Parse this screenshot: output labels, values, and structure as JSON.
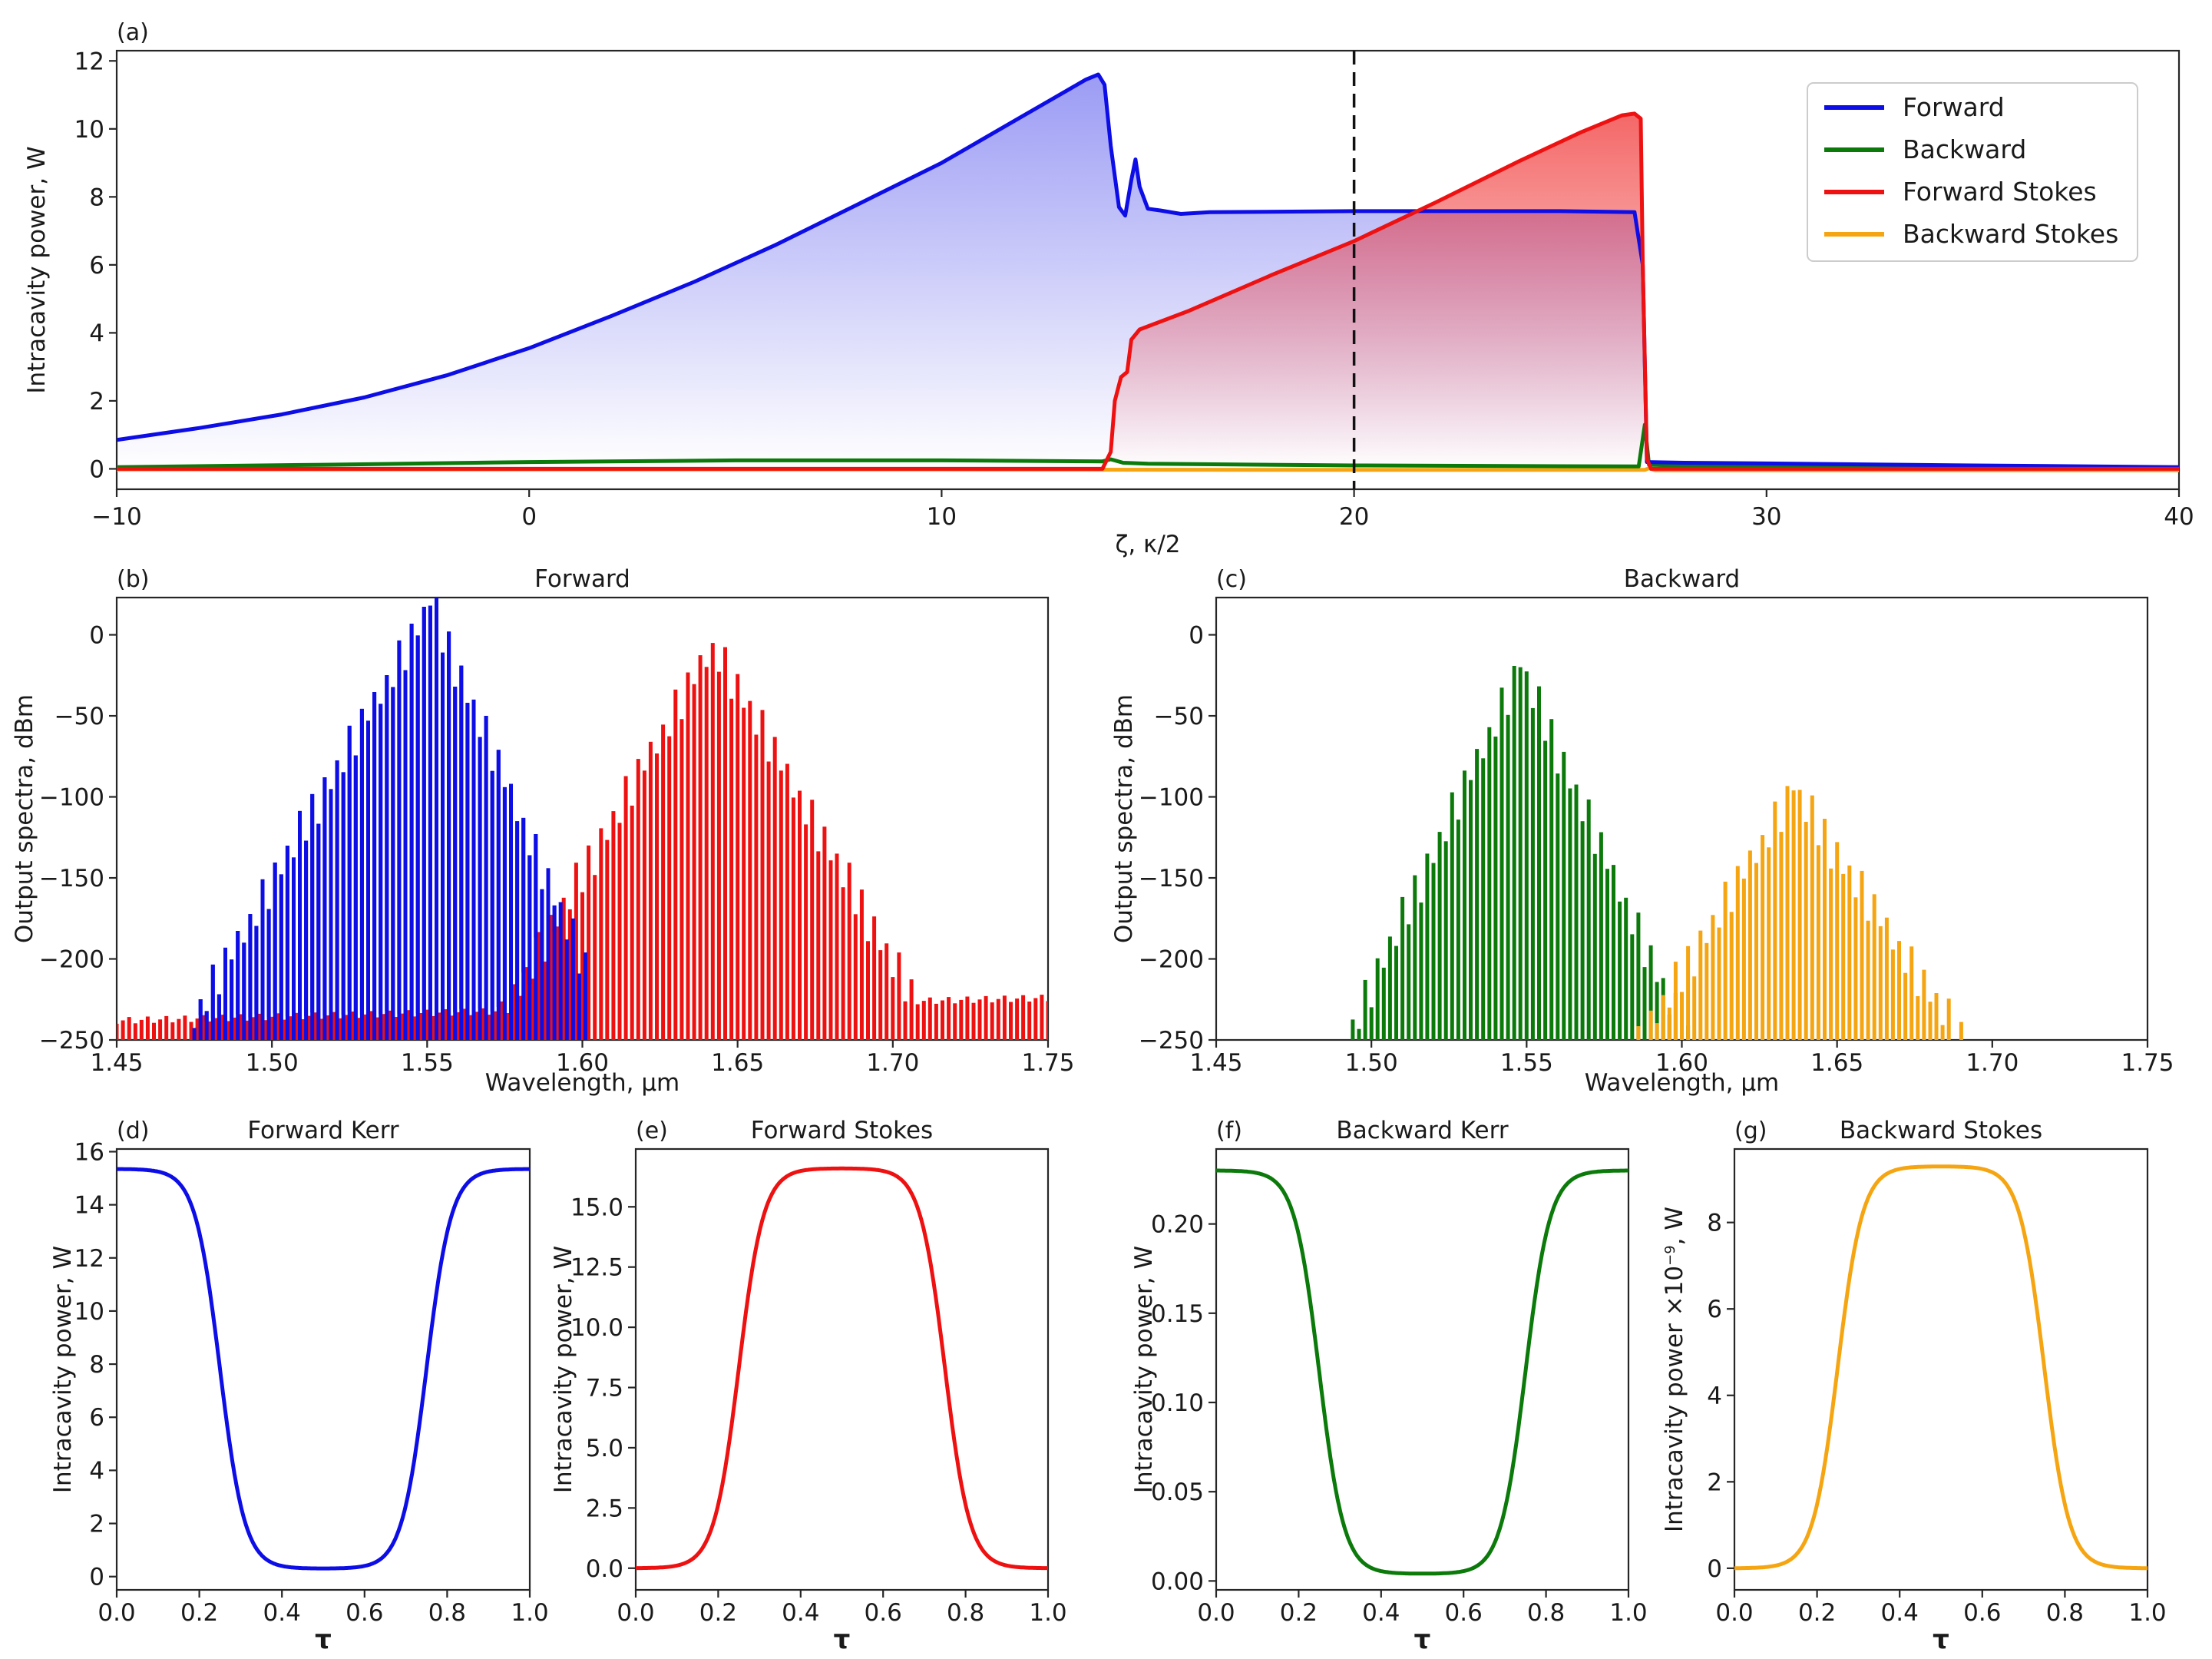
{
  "colors": {
    "forward": "#0d0de6",
    "backward": "#0b7a0b",
    "forward_stokes": "#ee1111",
    "backward_stokes": "#f5a511",
    "axis": "#262626"
  },
  "chart_data": [
    {
      "id": "a",
      "panel_label": "(a)",
      "type": "line",
      "title": "",
      "xlabel": "ζ, κ/2",
      "ylabel": "Intracavity power, W",
      "xlim": [
        -10,
        40
      ],
      "ylim": [
        -0.6,
        12.3
      ],
      "xticks": [
        -10,
        0,
        10,
        20,
        30,
        40
      ],
      "xtick_labels": [
        "−10",
        "0",
        "10",
        "20",
        "30",
        "40"
      ],
      "yticks": [
        0,
        2,
        4,
        6,
        8,
        10,
        12
      ],
      "ytick_labels": [
        "0",
        "2",
        "4",
        "6",
        "8",
        "10",
        "12"
      ],
      "vline": 20,
      "legend": [
        "Forward",
        "Backward",
        "Forward Stokes",
        "Backward Stokes"
      ],
      "legend_position": "top-right",
      "series": [
        {
          "name": "Forward",
          "color": "forward",
          "fill": true,
          "points": [
            [
              -10,
              0.85
            ],
            [
              -8,
              1.2
            ],
            [
              -6,
              1.6
            ],
            [
              -4,
              2.1
            ],
            [
              -2,
              2.75
            ],
            [
              0,
              3.55
            ],
            [
              2,
              4.5
            ],
            [
              4,
              5.5
            ],
            [
              6,
              6.6
            ],
            [
              8,
              7.8
            ],
            [
              10,
              9.0
            ],
            [
              12,
              10.4
            ],
            [
              13.5,
              11.45
            ],
            [
              13.8,
              11.6
            ],
            [
              13.95,
              11.3
            ],
            [
              14.1,
              9.5
            ],
            [
              14.3,
              7.7
            ],
            [
              14.45,
              7.45
            ],
            [
              14.6,
              8.5
            ],
            [
              14.7,
              9.1
            ],
            [
              14.8,
              8.3
            ],
            [
              15.0,
              7.65
            ],
            [
              15.3,
              7.6
            ],
            [
              15.8,
              7.5
            ],
            [
              16.5,
              7.55
            ],
            [
              20,
              7.58
            ],
            [
              25,
              7.58
            ],
            [
              26.8,
              7.55
            ],
            [
              27,
              6.0
            ],
            [
              27.1,
              0.2
            ],
            [
              28,
              0.18
            ],
            [
              30,
              0.16
            ],
            [
              35,
              0.1
            ],
            [
              40,
              0.05
            ]
          ]
        },
        {
          "name": "Backward",
          "color": "backward",
          "fill": false,
          "points": [
            [
              -10,
              0.05
            ],
            [
              -5,
              0.12
            ],
            [
              0,
              0.2
            ],
            [
              5,
              0.25
            ],
            [
              10,
              0.25
            ],
            [
              13.9,
              0.22
            ],
            [
              14.1,
              0.28
            ],
            [
              14.4,
              0.18
            ],
            [
              15,
              0.15
            ],
            [
              20,
              0.1
            ],
            [
              26.9,
              0.07
            ],
            [
              27.05,
              1.3
            ],
            [
              27.15,
              0.12
            ],
            [
              28,
              0.1
            ],
            [
              35,
              0.06
            ],
            [
              40,
              0.03
            ]
          ]
        },
        {
          "name": "Forward Stokes",
          "color": "forward_stokes",
          "fill": true,
          "points": [
            [
              -10,
              0
            ],
            [
              13.9,
              0
            ],
            [
              14.1,
              0.5
            ],
            [
              14.2,
              2.0
            ],
            [
              14.35,
              2.7
            ],
            [
              14.5,
              2.85
            ],
            [
              14.6,
              3.8
            ],
            [
              14.8,
              4.1
            ],
            [
              16,
              4.65
            ],
            [
              18,
              5.7
            ],
            [
              20,
              6.7
            ],
            [
              22,
              7.85
            ],
            [
              24,
              9.05
            ],
            [
              25.5,
              9.9
            ],
            [
              26.5,
              10.4
            ],
            [
              26.8,
              10.45
            ],
            [
              26.95,
              10.3
            ],
            [
              27.0,
              6.0
            ],
            [
              27.1,
              0.3
            ],
            [
              27.2,
              0
            ],
            [
              40,
              0
            ]
          ]
        },
        {
          "name": "Backward Stokes",
          "color": "backward_stokes",
          "fill": false,
          "points": [
            [
              -10,
              -0.02
            ],
            [
              10,
              -0.02
            ],
            [
              20,
              -0.03
            ],
            [
              27.05,
              -0.03
            ],
            [
              27.15,
              0.02
            ],
            [
              27.3,
              -0.04
            ],
            [
              40,
              -0.04
            ]
          ]
        }
      ]
    },
    {
      "id": "b",
      "panel_label": "(b)",
      "type": "bar",
      "title": "Forward",
      "xlabel": "Wavelength, μm",
      "ylabel": "Output spectra, dBm",
      "xlim": [
        1.45,
        1.75
      ],
      "ylim": [
        -250,
        23
      ],
      "xticks": [
        1.45,
        1.5,
        1.55,
        1.6,
        1.65,
        1.7,
        1.75
      ],
      "xtick_labels": [
        "1.45",
        "1.50",
        "1.55",
        "1.60",
        "1.65",
        "1.70",
        "1.75"
      ],
      "yticks": [
        0,
        -50,
        -100,
        -150,
        -200,
        -250
      ],
      "ytick_labels": [
        "0",
        "−50",
        "−100",
        "−150",
        "−200",
        "−250"
      ],
      "comb_spacing": 0.002,
      "series": [
        {
          "name": "Forward",
          "color": "forward",
          "kind": "peak",
          "center": 1.551,
          "peak": 18,
          "slope_left": 3350,
          "slope_right": 4500,
          "floor": -250,
          "range": [
            1.475,
            1.6
          ]
        },
        {
          "name": "Forward Stokes",
          "color": "forward_stokes",
          "kind": "peak_with_floor",
          "center": 1.642,
          "peak": -5,
          "slope": 3400,
          "floor_start": -238,
          "floor_end": -224,
          "range": [
            1.45,
            1.75
          ]
        }
      ]
    },
    {
      "id": "c",
      "panel_label": "(c)",
      "type": "bar",
      "title": "Backward",
      "xlabel": "Wavelength, μm",
      "ylabel": "Output spectra, dBm",
      "xlim": [
        1.45,
        1.75
      ],
      "ylim": [
        -250,
        23
      ],
      "xticks": [
        1.45,
        1.5,
        1.55,
        1.6,
        1.65,
        1.7,
        1.75
      ],
      "xtick_labels": [
        "1.45",
        "1.50",
        "1.55",
        "1.60",
        "1.65",
        "1.70",
        "1.75"
      ],
      "yticks": [
        0,
        -50,
        -100,
        -150,
        -200,
        -250
      ],
      "ytick_labels": [
        "0",
        "−50",
        "−100",
        "−150",
        "−200",
        "−250"
      ],
      "comb_spacing": 0.002,
      "series": [
        {
          "name": "Backward",
          "color": "backward",
          "kind": "peak",
          "center": 1.548,
          "peak": -20,
          "slope_left": 4100,
          "slope_right": 4300,
          "floor": -250,
          "range": [
            1.49,
            1.605
          ]
        },
        {
          "name": "Backward Stokes",
          "color": "backward_stokes",
          "kind": "peak",
          "center": 1.636,
          "peak": -96,
          "slope_left": 3150,
          "slope_right": 2850,
          "floor": -250,
          "range": [
            1.58,
            1.69
          ]
        }
      ]
    },
    {
      "id": "d",
      "panel_label": "(d)",
      "type": "line",
      "title": "Forward Kerr",
      "xlabel": "τ",
      "ylabel": "Intracavity power, W",
      "xlim": [
        0,
        1
      ],
      "ylim": [
        -0.5,
        16.1
      ],
      "xticks": [
        0,
        0.2,
        0.4,
        0.6,
        0.8,
        1.0
      ],
      "xtick_labels": [
        "0.0",
        "0.2",
        "0.4",
        "0.6",
        "0.8",
        "1.0"
      ],
      "yticks": [
        0,
        2,
        4,
        6,
        8,
        10,
        12,
        14,
        16
      ],
      "ytick_labels": [
        "0",
        "2",
        "4",
        "6",
        "8",
        "10",
        "12",
        "14",
        "16"
      ],
      "series": [
        {
          "name": "Forward Kerr",
          "color": "forward",
          "shape": "dip",
          "high": 15.35,
          "low": 0.3,
          "edge1": 0.25,
          "edge2": 0.75,
          "width": 0.03
        }
      ]
    },
    {
      "id": "e",
      "panel_label": "(e)",
      "type": "line",
      "title": "Forward Stokes",
      "xlabel": "τ",
      "ylabel": "Intracavity power, W",
      "xlim": [
        0,
        1
      ],
      "ylim": [
        -0.9,
        17.4
      ],
      "xticks": [
        0,
        0.2,
        0.4,
        0.6,
        0.8,
        1.0
      ],
      "xtick_labels": [
        "0.0",
        "0.2",
        "0.4",
        "0.6",
        "0.8",
        "1.0"
      ],
      "yticks": [
        0,
        2.5,
        5,
        7.5,
        10,
        12.5,
        15
      ],
      "ytick_labels": [
        "0.0",
        "2.5",
        "5.0",
        "7.5",
        "10.0",
        "12.5",
        "15.0"
      ],
      "series": [
        {
          "name": "Forward Stokes",
          "color": "forward_stokes",
          "shape": "bump",
          "high": 16.6,
          "low": 0,
          "edge1": 0.25,
          "edge2": 0.75,
          "width": 0.03
        }
      ]
    },
    {
      "id": "f",
      "panel_label": "(f)",
      "type": "line",
      "title": "Backward Kerr",
      "xlabel": "τ",
      "ylabel": "Intracavity power, W",
      "xlim": [
        0,
        1
      ],
      "ylim": [
        -0.005,
        0.242
      ],
      "xticks": [
        0,
        0.2,
        0.4,
        0.6,
        0.8,
        1.0
      ],
      "xtick_labels": [
        "0.0",
        "0.2",
        "0.4",
        "0.6",
        "0.8",
        "1.0"
      ],
      "yticks": [
        0,
        0.05,
        0.1,
        0.15,
        0.2
      ],
      "ytick_labels": [
        "0.00",
        "0.05",
        "0.10",
        "0.15",
        "0.20"
      ],
      "series": [
        {
          "name": "Backward Kerr",
          "color": "backward",
          "shape": "dip",
          "high": 0.23,
          "low": 0.004,
          "edge1": 0.25,
          "edge2": 0.75,
          "width": 0.03
        }
      ]
    },
    {
      "id": "g",
      "panel_label": "(g)",
      "type": "line",
      "title": "Backward Stokes",
      "xlabel": "τ",
      "ylabel": "Intracavity power ×10",
      "ylabel_sup": "−9",
      "ylabel_suffix": ", W",
      "xlim": [
        0,
        1
      ],
      "ylim": [
        -0.5,
        9.7
      ],
      "xticks": [
        0,
        0.2,
        0.4,
        0.6,
        0.8,
        1.0
      ],
      "xtick_labels": [
        "0.0",
        "0.2",
        "0.4",
        "0.6",
        "0.8",
        "1.0"
      ],
      "yticks": [
        0,
        2,
        4,
        6,
        8
      ],
      "ytick_labels": [
        "0",
        "2",
        "4",
        "6",
        "8"
      ],
      "series": [
        {
          "name": "Backward Stokes",
          "color": "backward_stokes",
          "shape": "bump",
          "high": 9.3,
          "low": 0,
          "edge1": 0.25,
          "edge2": 0.75,
          "width": 0.03
        }
      ]
    }
  ]
}
